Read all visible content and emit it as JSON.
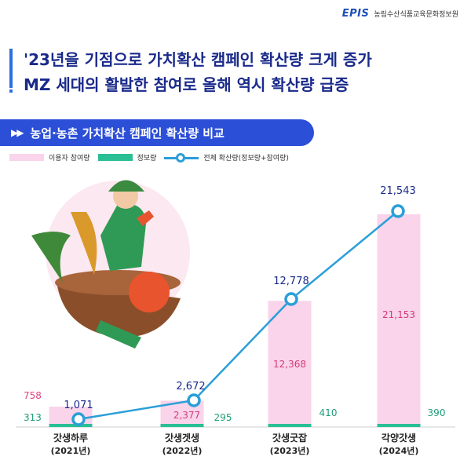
{
  "header": {
    "logo_mark": "EPIS",
    "logo_text": "농림수산식품교육문화정보원",
    "headline_1": "'23년을 기점으로 가치확산 캠페인 확산량 크게 증가",
    "headline_2": "MZ 세대의 활발한 참여로 올해 역시 확산량 급증"
  },
  "section": {
    "arrows": "▶▶",
    "title": "농업·농촌 가치확산 캠페인 확산량 비교"
  },
  "legend": {
    "participation": "이용자 참여량",
    "info": "정보량",
    "total": "전체 확산량(정보량+참여량)"
  },
  "colors": {
    "participation": "#f9d4ea",
    "info": "#2bbf95",
    "total_line": "#2b9fd8",
    "headline": "#1a2a8a",
    "banner": "#2c4fd8"
  },
  "chart_data": {
    "type": "bar",
    "categories": [
      "갓생하루",
      "갓생겟생",
      "갓생굿잡",
      "각양갓생"
    ],
    "category_sublabels": [
      "(2021년)",
      "(2022년)",
      "(2023년)",
      "(2024년)"
    ],
    "series": [
      {
        "name": "이용자 참여량",
        "kind": "bar",
        "values": [
          758,
          2377,
          12368,
          21153
        ]
      },
      {
        "name": "정보량",
        "kind": "bar",
        "values": [
          313,
          295,
          410,
          390
        ]
      },
      {
        "name": "전체 확산량(정보량+참여량)",
        "kind": "line",
        "values": [
          1071,
          2672,
          12778,
          21543
        ]
      }
    ],
    "value_labels": {
      "participation": [
        "758",
        "2,377",
        "12,368",
        "21,153"
      ],
      "info": [
        "313",
        "295",
        "410",
        "390"
      ],
      "total": [
        "1,071",
        "2,672",
        "12,778",
        "21,543"
      ]
    },
    "title": "",
    "xlabel": "",
    "ylabel": "",
    "ylim": [
      0,
      23000
    ],
    "grid": false,
    "legend_position": "top-left"
  }
}
